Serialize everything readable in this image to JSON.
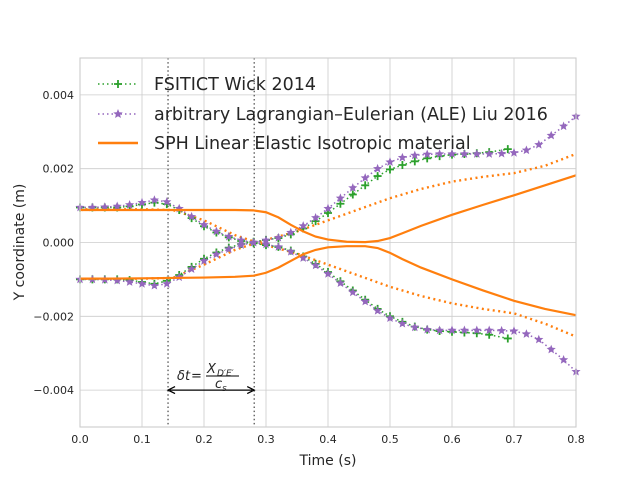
{
  "chart_data": {
    "type": "line",
    "xlabel": "Time (s)",
    "ylabel": "Y coordinate (m)",
    "xlim": [
      0.0,
      0.8
    ],
    "ylim": [
      -0.005,
      0.005
    ],
    "x_ticks": [
      "0.0",
      "0.1",
      "0.2",
      "0.3",
      "0.4",
      "0.5",
      "0.6",
      "0.7",
      "0.8"
    ],
    "y_ticks": [
      "−0.004",
      "−0.002",
      "0.000",
      "0.002",
      "0.004"
    ],
    "grid": true,
    "legend_position": "top-left",
    "series": [
      {
        "name": "FSITICT Wick 2014",
        "color": "#2ca02c",
        "line_style": "dotted",
        "marker": "plus",
        "curves": [
          [
            [
              0.0,
              0.00095
            ],
            [
              0.02,
              0.00095
            ],
            [
              0.04,
              0.00095
            ],
            [
              0.06,
              0.00095
            ],
            [
              0.08,
              0.00098
            ],
            [
              0.1,
              0.00103
            ],
            [
              0.12,
              0.00108
            ],
            [
              0.14,
              0.00104
            ],
            [
              0.16,
              0.00088
            ],
            [
              0.18,
              0.00066
            ],
            [
              0.2,
              0.00044
            ],
            [
              0.22,
              0.00027
            ],
            [
              0.24,
              0.00014
            ],
            [
              0.26,
              4e-05
            ],
            [
              0.28,
              -2e-05
            ],
            [
              0.3,
              -7e-05
            ],
            [
              0.32,
              -0.00012
            ],
            [
              0.34,
              -0.00022
            ],
            [
              0.36,
              -0.00038
            ],
            [
              0.38,
              -0.00058
            ],
            [
              0.4,
              -0.0008
            ],
            [
              0.42,
              -0.00105
            ],
            [
              0.44,
              -0.0013
            ],
            [
              0.46,
              -0.00155
            ],
            [
              0.48,
              -0.0018
            ],
            [
              0.5,
              -0.002
            ],
            [
              0.52,
              -0.00215
            ],
            [
              0.54,
              -0.00228
            ],
            [
              0.56,
              -0.00236
            ],
            [
              0.58,
              -0.0024
            ],
            [
              0.6,
              -0.00242
            ],
            [
              0.62,
              -0.00244
            ],
            [
              0.64,
              -0.00246
            ],
            [
              0.66,
              -0.0025
            ],
            [
              0.69,
              -0.0026
            ]
          ],
          [
            [
              0.0,
              -0.001
            ],
            [
              0.02,
              -0.001
            ],
            [
              0.04,
              -0.001
            ],
            [
              0.06,
              -0.001
            ],
            [
              0.08,
              -0.00102
            ],
            [
              0.1,
              -0.00107
            ],
            [
              0.12,
              -0.00112
            ],
            [
              0.14,
              -0.00104
            ],
            [
              0.16,
              -0.00088
            ],
            [
              0.18,
              -0.00066
            ],
            [
              0.2,
              -0.00044
            ],
            [
              0.22,
              -0.00027
            ],
            [
              0.24,
              -0.00014
            ],
            [
              0.26,
              -4e-05
            ],
            [
              0.28,
              2e-05
            ],
            [
              0.3,
              7e-05
            ],
            [
              0.32,
              0.00012
            ],
            [
              0.34,
              0.00022
            ],
            [
              0.36,
              0.00038
            ],
            [
              0.38,
              0.00058
            ],
            [
              0.4,
              0.0008
            ],
            [
              0.42,
              0.00105
            ],
            [
              0.44,
              0.0013
            ],
            [
              0.46,
              0.00155
            ],
            [
              0.48,
              0.0018
            ],
            [
              0.5,
              0.00198
            ],
            [
              0.52,
              0.0021
            ],
            [
              0.54,
              0.0022
            ],
            [
              0.56,
              0.00228
            ],
            [
              0.58,
              0.00234
            ],
            [
              0.6,
              0.00238
            ],
            [
              0.62,
              0.0024
            ],
            [
              0.64,
              0.00242
            ],
            [
              0.66,
              0.00245
            ],
            [
              0.69,
              0.00253
            ]
          ]
        ]
      },
      {
        "name": "arbitrary Lagrangian–Eulerian (ALE) Liu 2016",
        "color": "#9467bd",
        "line_style": "dotted",
        "marker": "star",
        "curves": [
          [
            [
              0.0,
              0.00095
            ],
            [
              0.02,
              0.00095
            ],
            [
              0.04,
              0.00096
            ],
            [
              0.06,
              0.00098
            ],
            [
              0.08,
              0.00102
            ],
            [
              0.1,
              0.00108
            ],
            [
              0.12,
              0.00115
            ],
            [
              0.14,
              0.0011
            ],
            [
              0.16,
              0.00092
            ],
            [
              0.18,
              0.0007
            ],
            [
              0.2,
              0.00048
            ],
            [
              0.22,
              0.0003
            ],
            [
              0.24,
              0.00016
            ],
            [
              0.26,
              6e-05
            ],
            [
              0.28,
              0.0
            ],
            [
              0.3,
              -5e-05
            ],
            [
              0.32,
              -0.00012
            ],
            [
              0.34,
              -0.00025
            ],
            [
              0.36,
              -0.00042
            ],
            [
              0.38,
              -0.00062
            ],
            [
              0.4,
              -0.00085
            ],
            [
              0.42,
              -0.0011
            ],
            [
              0.44,
              -0.00135
            ],
            [
              0.46,
              -0.0016
            ],
            [
              0.48,
              -0.00185
            ],
            [
              0.5,
              -0.00205
            ],
            [
              0.52,
              -0.0022
            ],
            [
              0.54,
              -0.0023
            ],
            [
              0.56,
              -0.00236
            ],
            [
              0.58,
              -0.00238
            ],
            [
              0.6,
              -0.00238
            ],
            [
              0.62,
              -0.00238
            ],
            [
              0.64,
              -0.00238
            ],
            [
              0.66,
              -0.00238
            ],
            [
              0.68,
              -0.00239
            ],
            [
              0.7,
              -0.0024
            ],
            [
              0.72,
              -0.00248
            ],
            [
              0.74,
              -0.00263
            ],
            [
              0.76,
              -0.0029
            ],
            [
              0.78,
              -0.00318
            ],
            [
              0.8,
              -0.0035
            ]
          ],
          [
            [
              0.0,
              -0.001
            ],
            [
              0.02,
              -0.001
            ],
            [
              0.04,
              -0.00101
            ],
            [
              0.06,
              -0.00103
            ],
            [
              0.08,
              -0.00107
            ],
            [
              0.1,
              -0.00112
            ],
            [
              0.12,
              -0.00117
            ],
            [
              0.14,
              -0.00112
            ],
            [
              0.16,
              -0.00094
            ],
            [
              0.18,
              -0.00072
            ],
            [
              0.2,
              -0.0005
            ],
            [
              0.22,
              -0.00032
            ],
            [
              0.24,
              -0.00018
            ],
            [
              0.26,
              -7e-05
            ],
            [
              0.28,
              0.0
            ],
            [
              0.3,
              6e-05
            ],
            [
              0.32,
              0.00013
            ],
            [
              0.34,
              0.00027
            ],
            [
              0.36,
              0.00045
            ],
            [
              0.38,
              0.00067
            ],
            [
              0.4,
              0.00092
            ],
            [
              0.42,
              0.0012
            ],
            [
              0.44,
              0.00148
            ],
            [
              0.46,
              0.00175
            ],
            [
              0.48,
              0.002
            ],
            [
              0.5,
              0.00218
            ],
            [
              0.52,
              0.0023
            ],
            [
              0.54,
              0.00236
            ],
            [
              0.56,
              0.00239
            ],
            [
              0.58,
              0.0024
            ],
            [
              0.6,
              0.0024
            ],
            [
              0.62,
              0.0024
            ],
            [
              0.64,
              0.0024
            ],
            [
              0.66,
              0.0024
            ],
            [
              0.68,
              0.00241
            ],
            [
              0.7,
              0.00243
            ],
            [
              0.72,
              0.0025
            ],
            [
              0.74,
              0.00265
            ],
            [
              0.76,
              0.0029
            ],
            [
              0.78,
              0.00315
            ],
            [
              0.8,
              0.00342
            ]
          ]
        ]
      },
      {
        "name": "SPH Linear Elastic Isotropic material",
        "color": "#ff7f0e",
        "line_style": "solid",
        "marker": "none",
        "curves": [
          [
            [
              0.0,
              0.00088
            ],
            [
              0.05,
              0.00088
            ],
            [
              0.1,
              0.00088
            ],
            [
              0.15,
              0.00088
            ],
            [
              0.2,
              0.00088
            ],
            [
              0.25,
              0.00088
            ],
            [
              0.28,
              0.00087
            ],
            [
              0.3,
              0.00082
            ],
            [
              0.32,
              0.00068
            ],
            [
              0.34,
              0.00048
            ],
            [
              0.36,
              0.0003
            ],
            [
              0.38,
              0.00016
            ],
            [
              0.4,
              8e-05
            ],
            [
              0.43,
              2e-05
            ],
            [
              0.46,
              1e-05
            ],
            [
              0.48,
              4e-05
            ],
            [
              0.5,
              0.00012
            ],
            [
              0.52,
              0.00025
            ],
            [
              0.55,
              0.00045
            ],
            [
              0.6,
              0.00075
            ],
            [
              0.65,
              0.00102
            ],
            [
              0.7,
              0.00128
            ],
            [
              0.75,
              0.00155
            ],
            [
              0.8,
              0.00182
            ]
          ],
          [
            [
              0.0,
              -0.00098
            ],
            [
              0.05,
              -0.00098
            ],
            [
              0.1,
              -0.00097
            ],
            [
              0.15,
              -0.00096
            ],
            [
              0.2,
              -0.00095
            ],
            [
              0.25,
              -0.00093
            ],
            [
              0.28,
              -0.0009
            ],
            [
              0.3,
              -0.00082
            ],
            [
              0.32,
              -0.00068
            ],
            [
              0.34,
              -0.0005
            ],
            [
              0.36,
              -0.00032
            ],
            [
              0.38,
              -0.0002
            ],
            [
              0.4,
              -0.00013
            ],
            [
              0.43,
              -0.0001
            ],
            [
              0.46,
              -0.0001
            ],
            [
              0.48,
              -0.00015
            ],
            [
              0.5,
              -0.00028
            ],
            [
              0.52,
              -0.00045
            ],
            [
              0.55,
              -0.00068
            ],
            [
              0.6,
              -0.001
            ],
            [
              0.65,
              -0.0013
            ],
            [
              0.7,
              -0.00158
            ],
            [
              0.75,
              -0.0018
            ],
            [
              0.8,
              -0.00197
            ]
          ]
        ]
      },
      {
        "name": "",
        "color": "#ff7f0e",
        "line_style": "dotted",
        "marker": "none",
        "curves": [
          [
            [
              0.0,
              0.0009
            ],
            [
              0.1,
              0.0009
            ],
            [
              0.15,
              0.00088
            ],
            [
              0.2,
              0.0006
            ],
            [
              0.25,
              0.0002
            ],
            [
              0.28,
              3e-05
            ],
            [
              0.3,
              -7e-05
            ],
            [
              0.35,
              -0.0003
            ],
            [
              0.4,
              -0.0006
            ],
            [
              0.45,
              -0.0009
            ],
            [
              0.5,
              -0.0012
            ],
            [
              0.55,
              -0.00145
            ],
            [
              0.6,
              -0.00165
            ],
            [
              0.65,
              -0.0018
            ],
            [
              0.7,
              -0.00192
            ],
            [
              0.75,
              -0.0022
            ],
            [
              0.8,
              -0.00255
            ]
          ],
          [
            [
              0.0,
              -0.00098
            ],
            [
              0.1,
              -0.00098
            ],
            [
              0.15,
              -0.00096
            ],
            [
              0.2,
              -0.0006
            ],
            [
              0.25,
              -0.0002
            ],
            [
              0.28,
              -3e-05
            ],
            [
              0.3,
              7e-05
            ],
            [
              0.35,
              0.0003
            ],
            [
              0.4,
              0.0006
            ],
            [
              0.45,
              0.0009
            ],
            [
              0.5,
              0.0012
            ],
            [
              0.55,
              0.00145
            ],
            [
              0.6,
              0.00165
            ],
            [
              0.65,
              0.00178
            ],
            [
              0.7,
              0.00188
            ],
            [
              0.75,
              0.00208
            ],
            [
              0.8,
              0.0024
            ]
          ]
        ]
      }
    ],
    "vertical_lines": [
      0.142,
      0.281
    ],
    "annotation": {
      "label": "δt = X_{D'E'} / c_s",
      "lhs": "δt",
      "equals": "=",
      "numerator": "X",
      "numerator_sub": "D′E′",
      "denominator": "c",
      "denominator_sub": "s",
      "arrow_from": [
        0.142,
        -0.004
      ],
      "arrow_to": [
        0.281,
        -0.004
      ]
    }
  }
}
